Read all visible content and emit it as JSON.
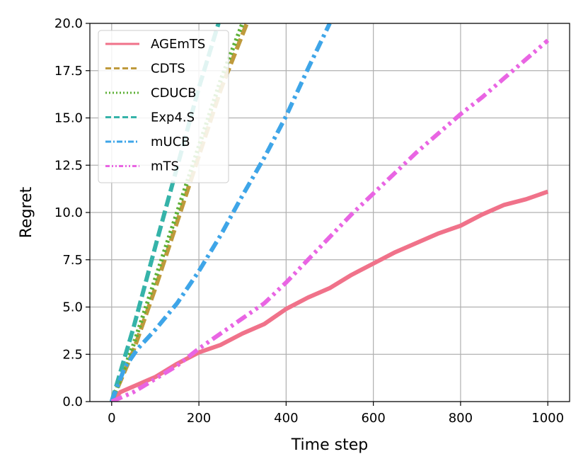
{
  "chart_data": {
    "type": "line",
    "xlabel": "Time step",
    "ylabel": "Regret",
    "xlim": [
      -50,
      1050
    ],
    "ylim": [
      0,
      20
    ],
    "xticks": [
      0,
      200,
      400,
      600,
      800,
      1000
    ],
    "yticks": [
      0.0,
      2.5,
      5.0,
      7.5,
      10.0,
      12.5,
      15.0,
      17.5,
      20.0
    ],
    "xtick_labels": [
      "0",
      "200",
      "400",
      "600",
      "800",
      "1000"
    ],
    "ytick_labels": [
      "0.0",
      "2.5",
      "5.0",
      "7.5",
      "10.0",
      "12.5",
      "15.0",
      "17.5",
      "20.0"
    ],
    "grid": true,
    "legend_position": "top-left",
    "series": [
      {
        "name": "AGEmTS",
        "color": "#f0728a",
        "style": "solid",
        "x": [
          0,
          20,
          50,
          100,
          150,
          200,
          250,
          300,
          350,
          400,
          450,
          500,
          550,
          600,
          650,
          700,
          750,
          800,
          850,
          900,
          950,
          1000
        ],
        "y": [
          0,
          0.5,
          0.8,
          1.3,
          2.0,
          2.6,
          3.0,
          3.6,
          4.1,
          4.9,
          5.5,
          6.0,
          6.7,
          7.3,
          7.9,
          8.4,
          8.9,
          9.3,
          9.9,
          10.4,
          10.7,
          11.1
        ]
      },
      {
        "name": "CDTS",
        "color": "#bf9a3c",
        "style": "dashed",
        "x": [
          0,
          50,
          100,
          150,
          200,
          250,
          310
        ],
        "y": [
          0,
          2.7,
          6.0,
          9.5,
          13.0,
          16.5,
          20.0
        ]
      },
      {
        "name": "CDUCB",
        "color": "#5fb038",
        "style": "dotted",
        "x": [
          0,
          50,
          100,
          150,
          200,
          250,
          300
        ],
        "y": [
          0,
          3.0,
          6.5,
          10.0,
          13.5,
          17.0,
          20.0
        ]
      },
      {
        "name": "Exp4.S",
        "color": "#35b3a9",
        "style": "dashed",
        "x": [
          0,
          50,
          100,
          150,
          200,
          245
        ],
        "y": [
          0,
          3.9,
          8.2,
          12.4,
          16.6,
          20.0
        ]
      },
      {
        "name": "mUCB",
        "color": "#3ea5e8",
        "style": "dashdot",
        "x": [
          0,
          30,
          60,
          100,
          150,
          200,
          250,
          300,
          350,
          400,
          450,
          500
        ],
        "y": [
          0,
          1.8,
          2.8,
          3.8,
          5.2,
          6.9,
          8.8,
          10.9,
          12.9,
          15.1,
          17.6,
          20.0
        ]
      },
      {
        "name": "mTS",
        "color": "#e965e3",
        "style": "dashdotdot",
        "x": [
          0,
          50,
          100,
          150,
          200,
          250,
          300,
          350,
          400,
          450,
          500,
          550,
          600,
          650,
          700,
          750,
          800,
          850,
          900,
          950,
          1000
        ],
        "y": [
          0,
          0.5,
          1.2,
          1.9,
          2.8,
          3.6,
          4.4,
          5.2,
          6.3,
          7.5,
          8.7,
          9.9,
          11.0,
          12.1,
          13.2,
          14.2,
          15.2,
          16.1,
          17.1,
          18.1,
          19.1
        ]
      }
    ]
  }
}
